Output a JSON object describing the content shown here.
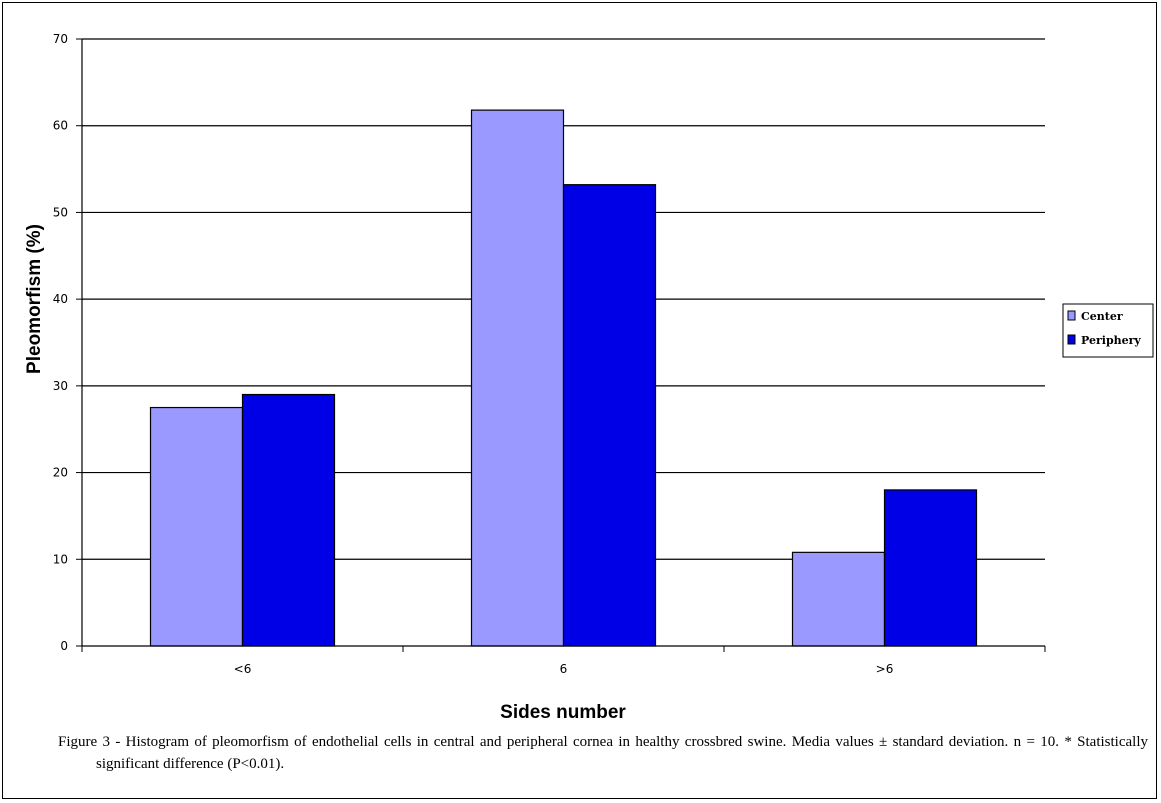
{
  "chart_data": {
    "type": "bar",
    "categories": [
      "<6",
      "6",
      ">6"
    ],
    "series": [
      {
        "name": "Center",
        "values": [
          27.5,
          61.8,
          10.8
        ],
        "color": "#9999ff"
      },
      {
        "name": "Periphery",
        "values": [
          29.0,
          53.2,
          18.0
        ],
        "color": "#0000e6"
      }
    ],
    "xlabel": "Sides number",
    "ylabel": "Pleomorfism (%)",
    "ylim": [
      0,
      70
    ],
    "yticks": [
      0,
      10,
      20,
      30,
      40,
      50,
      60,
      70
    ],
    "grid": true,
    "legend_position": "right"
  },
  "caption": "Figure 3 - Histogram of pleomorfism of endothelial cells in central and peripheral cornea in healthy crossbred swine.  Media values ± standard deviation. n = 10. * Statistically significant difference (P<0.01)."
}
